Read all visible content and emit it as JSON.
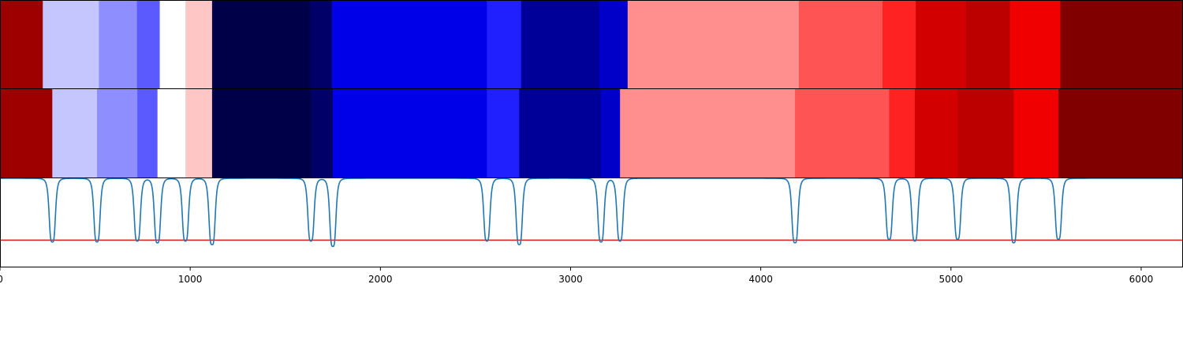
{
  "chart_data": {
    "type": "heatmap",
    "x_range": [
      0,
      6220
    ],
    "x_ticks": [
      0,
      1000,
      2000,
      3000,
      4000,
      5000,
      6000
    ],
    "tick_labels": [
      "0",
      "1000",
      "2000",
      "3000",
      "4000",
      "5000",
      "6000"
    ],
    "top_segmentation": [
      {
        "start": 0,
        "end": 225,
        "color": "#9e0000"
      },
      {
        "start": 225,
        "end": 520,
        "color": "#c6c6ff"
      },
      {
        "start": 520,
        "end": 720,
        "color": "#8e8eff"
      },
      {
        "start": 720,
        "end": 840,
        "color": "#5a5aff"
      },
      {
        "start": 840,
        "end": 975,
        "color": "#ffffff"
      },
      {
        "start": 975,
        "end": 1115,
        "color": "#ffc6c6"
      },
      {
        "start": 1115,
        "end": 1630,
        "color": "#000048"
      },
      {
        "start": 1630,
        "end": 1745,
        "color": "#000068"
      },
      {
        "start": 1745,
        "end": 2560,
        "color": "#0000e8"
      },
      {
        "start": 2560,
        "end": 2740,
        "color": "#2020ff"
      },
      {
        "start": 2740,
        "end": 3150,
        "color": "#000098"
      },
      {
        "start": 3150,
        "end": 3300,
        "color": "#0000c8"
      },
      {
        "start": 3300,
        "end": 4200,
        "color": "#ff8e8e"
      },
      {
        "start": 4200,
        "end": 4640,
        "color": "#ff5454"
      },
      {
        "start": 4640,
        "end": 4815,
        "color": "#ff2222"
      },
      {
        "start": 4815,
        "end": 5080,
        "color": "#d20000"
      },
      {
        "start": 5080,
        "end": 5310,
        "color": "#bc0000"
      },
      {
        "start": 5310,
        "end": 5575,
        "color": "#f00000"
      },
      {
        "start": 5575,
        "end": 6220,
        "color": "#800000"
      }
    ],
    "bottom_segmentation": [
      {
        "start": 0,
        "end": 275,
        "color": "#9e0000"
      },
      {
        "start": 275,
        "end": 510,
        "color": "#c6c6ff"
      },
      {
        "start": 510,
        "end": 722,
        "color": "#8e8eff"
      },
      {
        "start": 722,
        "end": 828,
        "color": "#5a5aff"
      },
      {
        "start": 828,
        "end": 975,
        "color": "#ffffff"
      },
      {
        "start": 975,
        "end": 1115,
        "color": "#ffc6c6"
      },
      {
        "start": 1115,
        "end": 1635,
        "color": "#000048"
      },
      {
        "start": 1635,
        "end": 1750,
        "color": "#000068"
      },
      {
        "start": 1750,
        "end": 2560,
        "color": "#0000e8"
      },
      {
        "start": 2560,
        "end": 2730,
        "color": "#2020ff"
      },
      {
        "start": 2730,
        "end": 3160,
        "color": "#000098"
      },
      {
        "start": 3160,
        "end": 3260,
        "color": "#0000c8"
      },
      {
        "start": 3260,
        "end": 4180,
        "color": "#ff8e8e"
      },
      {
        "start": 4180,
        "end": 4675,
        "color": "#ff5454"
      },
      {
        "start": 4675,
        "end": 4810,
        "color": "#ff2222"
      },
      {
        "start": 4810,
        "end": 5035,
        "color": "#d20000"
      },
      {
        "start": 5035,
        "end": 5330,
        "color": "#bc0000"
      },
      {
        "start": 5330,
        "end": 5565,
        "color": "#f00000"
      },
      {
        "start": 5565,
        "end": 6220,
        "color": "#800000"
      }
    ],
    "dips": [
      {
        "x": 275,
        "depth": 0.72
      },
      {
        "x": 510,
        "depth": 0.72
      },
      {
        "x": 722,
        "depth": 0.71
      },
      {
        "x": 828,
        "depth": 0.73
      },
      {
        "x": 975,
        "depth": 0.71
      },
      {
        "x": 1115,
        "depth": 0.75
      },
      {
        "x": 1635,
        "depth": 0.71
      },
      {
        "x": 1750,
        "depth": 0.77
      },
      {
        "x": 2560,
        "depth": 0.71
      },
      {
        "x": 2730,
        "depth": 0.75
      },
      {
        "x": 3160,
        "depth": 0.72
      },
      {
        "x": 3260,
        "depth": 0.71
      },
      {
        "x": 4180,
        "depth": 0.73
      },
      {
        "x": 4675,
        "depth": 0.69
      },
      {
        "x": 4810,
        "depth": 0.71
      },
      {
        "x": 5035,
        "depth": 0.69
      },
      {
        "x": 5330,
        "depth": 0.73
      },
      {
        "x": 5565,
        "depth": 0.69
      }
    ],
    "threshold": 0.3,
    "line_color": "#1f77b4",
    "threshold_color": "#e41a1c",
    "grid": false,
    "legend": "none"
  }
}
